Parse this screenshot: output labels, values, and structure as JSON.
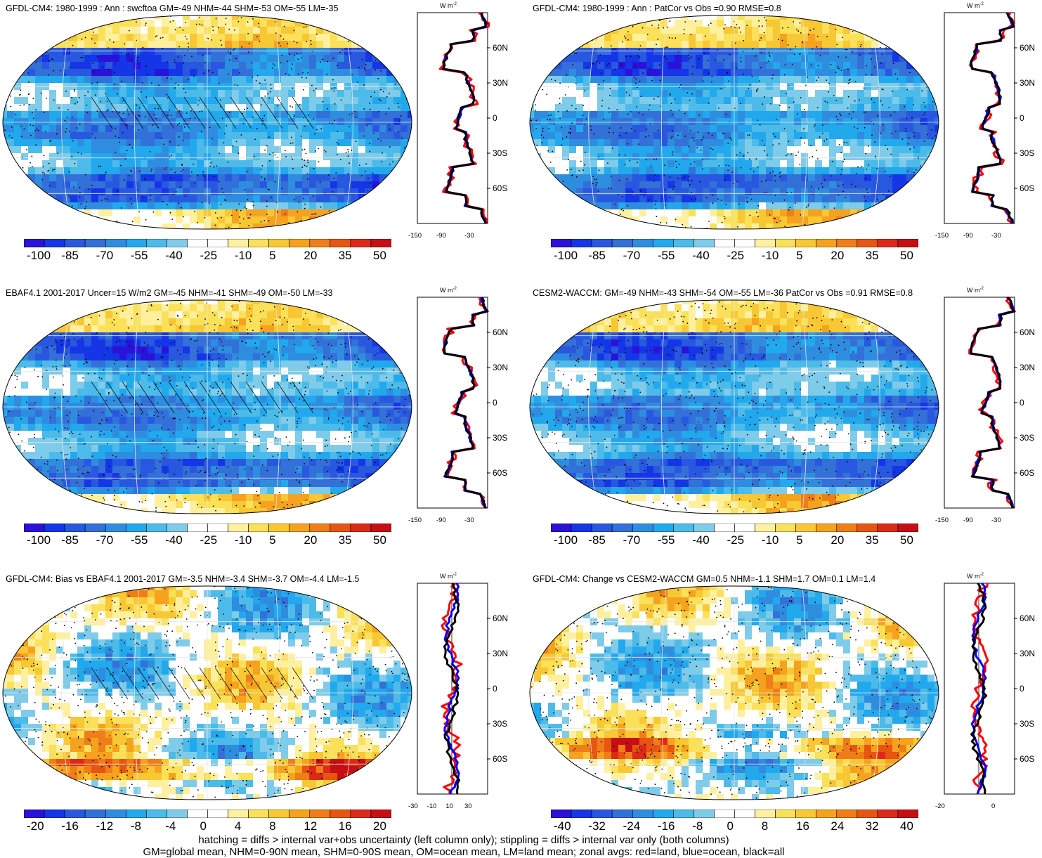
{
  "panels": [
    {
      "id": "p1",
      "title": "GFDL-CM4: 1980-1999 : Ann : swcftoa GM=-49 NHM=-44 SHM=-53 OM=-55 LM=-35",
      "colorbar_labels": [
        "-100",
        "-85",
        "-70",
        "-55",
        "-40",
        "-25",
        "-10",
        "5",
        "20",
        "35",
        "50"
      ],
      "zonal_ticks_x": [
        "-150",
        "-90",
        "-30"
      ],
      "lat_labels": [
        "60N",
        "30N",
        "0",
        "30S",
        "60S"
      ],
      "units": "W m",
      "units_sup": "-2"
    },
    {
      "id": "p2",
      "title": "GFDL-CM4: 1980-1999 : Ann : PatCor vs Obs =0.90 RMSE=0.8",
      "colorbar_labels": [
        "-100",
        "-85",
        "-70",
        "-55",
        "-40",
        "-25",
        "-10",
        "5",
        "20",
        "35",
        "50"
      ],
      "zonal_ticks_x": [
        "-150",
        "-90",
        "-30"
      ],
      "lat_labels": [
        "60N",
        "30N",
        "0",
        "30S",
        "60S"
      ],
      "units": "W m",
      "units_sup": "-2"
    },
    {
      "id": "p3",
      "title": "EBAF4.1 2001-2017 Uncer=15 W/m2 GM=-45 NHM=-41 SHM=-49 OM=-50 LM=-33",
      "colorbar_labels": [
        "-100",
        "-85",
        "-70",
        "-55",
        "-40",
        "-25",
        "-10",
        "5",
        "20",
        "35",
        "50"
      ],
      "zonal_ticks_x": [
        "-150",
        "-90",
        "-30"
      ],
      "lat_labels": [
        "60N",
        "30N",
        "0",
        "30S",
        "60S"
      ],
      "units": "W m",
      "units_sup": "-2"
    },
    {
      "id": "p4",
      "title": "CESM2-WACCM: GM=-49 NHM=-43 SHM=-54 OM=-55 LM=-36 PatCor vs Obs =0.91 RMSE=0.8",
      "colorbar_labels": [
        "-100",
        "-85",
        "-70",
        "-55",
        "-40",
        "-25",
        "-10",
        "5",
        "20",
        "35",
        "50"
      ],
      "zonal_ticks_x": [
        "-150",
        "-90",
        "-30"
      ],
      "lat_labels": [
        "60N",
        "30N",
        "0",
        "30S",
        "60S"
      ],
      "units": "W m",
      "units_sup": "-2"
    },
    {
      "id": "p5",
      "title": "GFDL-CM4: Bias vs EBAF4.1 2001-2017 GM=-3.5 NHM=-3.4 SHM=-3.7 OM=-4.4 LM=-1.5",
      "colorbar_labels": [
        "-20",
        "-16",
        "-12",
        "-8",
        "-4",
        "0",
        "4",
        "8",
        "12",
        "16",
        "20"
      ],
      "zonal_ticks_x": [
        "-30",
        "-10",
        "10",
        "30"
      ],
      "lat_labels": [
        "60N",
        "30N",
        "0",
        "30S",
        "60S"
      ],
      "units": "W m",
      "units_sup": "-2"
    },
    {
      "id": "p6",
      "title": "GFDL-CM4: Change vs CESM2-WACCM GM=0.5 NHM=-1.1 SHM=1.7 OM=0.1 LM=1.4",
      "colorbar_labels": [
        "-40",
        "-32",
        "-24",
        "-16",
        "-8",
        "0",
        "8",
        "16",
        "24",
        "32",
        "40"
      ],
      "zonal_ticks_x": [
        "-20",
        "0"
      ],
      "lat_labels": [
        "60N",
        "30N",
        "0",
        "30S",
        "60S"
      ],
      "units": "W m",
      "units_sup": "-2"
    }
  ],
  "colors": {
    "palette": [
      "#2a12d8",
      "#1536e6",
      "#2858e0",
      "#3370d8",
      "#2f8de0",
      "#22a8ec",
      "#4cbbe9",
      "#7fcbea",
      "#ffffff",
      "#ffffff",
      "#fff0a0",
      "#fbe05a",
      "#f7c734",
      "#f5a21f",
      "#ef7d18",
      "#e85512",
      "#dc2a18",
      "#c60f14"
    ],
    "land": "#ff0000",
    "ocean": "#0000ff",
    "all": "#000000"
  },
  "chart_data": [
    {
      "type": "heatmap",
      "panel": "p1",
      "zonal_series": [
        {
          "name": "red=land"
        },
        {
          "name": "blue=ocean"
        },
        {
          "name": "black=all"
        }
      ]
    },
    {
      "type": "heatmap",
      "panel": "p2",
      "zonal_series": [
        {
          "name": "red=land"
        },
        {
          "name": "blue=ocean"
        },
        {
          "name": "black=all"
        }
      ]
    },
    {
      "type": "heatmap",
      "panel": "p3",
      "zonal_series": [
        {
          "name": "red=land"
        },
        {
          "name": "blue=ocean"
        },
        {
          "name": "black=all"
        }
      ]
    },
    {
      "type": "heatmap",
      "panel": "p4",
      "zonal_series": [
        {
          "name": "red=land"
        },
        {
          "name": "blue=ocean"
        },
        {
          "name": "black=all"
        }
      ]
    },
    {
      "type": "heatmap",
      "panel": "p5",
      "zonal_series": [
        {
          "name": "red=land"
        },
        {
          "name": "blue=ocean"
        },
        {
          "name": "black=all"
        }
      ]
    },
    {
      "type": "heatmap",
      "panel": "p6",
      "zonal_series": [
        {
          "name": "red=land"
        },
        {
          "name": "blue=ocean"
        },
        {
          "name": "black=all"
        }
      ]
    }
  ],
  "footer": {
    "line1": "hatching = diffs > internal var+obs uncertainty (left column only); stippling = diffs > internal var only (both columns)",
    "line2": "GM=global mean, NHM=0-90N mean, SHM=0-90S mean, OM=ocean mean, LM=land mean; zonal avgs: red=land, blue=ocean, black=all"
  }
}
